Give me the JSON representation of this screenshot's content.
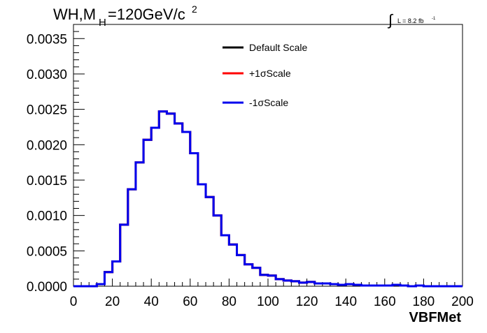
{
  "header": {
    "title_main": "WH,M",
    "title_sub": "H",
    "title_rest": "=120GeV/c",
    "title_sup": "2",
    "lumi_integral": "∫",
    "lumi_text": "L = 8.2 fb",
    "lumi_sup": "-1"
  },
  "chart_data": {
    "type": "line",
    "style": "step-histogram",
    "xlabel": "VBFMet",
    "ylabel": "",
    "xlim": [
      0,
      200
    ],
    "ylim": [
      0,
      0.0037
    ],
    "x_ticks": [
      0,
      20,
      40,
      60,
      80,
      100,
      120,
      140,
      160,
      180,
      200
    ],
    "x_tick_labels": [
      "0",
      "20",
      "40",
      "60",
      "80",
      "100",
      "120",
      "140",
      "160",
      "180",
      "200"
    ],
    "y_ticks": [
      0,
      0.0005,
      0.001,
      0.0015,
      0.002,
      0.0025,
      0.003,
      0.0035
    ],
    "y_tick_labels": [
      "0.0000",
      "0.0005",
      "0.0010",
      "0.0015",
      "0.0020",
      "0.0025",
      "0.0030",
      "0.0035"
    ],
    "grid": false,
    "legend_position": "top-center",
    "bin_edges": [
      0,
      4,
      8,
      12,
      16,
      20,
      24,
      28,
      32,
      36,
      40,
      44,
      48,
      52,
      56,
      60,
      64,
      68,
      72,
      76,
      80,
      84,
      88,
      92,
      96,
      100,
      104,
      108,
      112,
      116,
      120,
      124,
      128,
      132,
      136,
      140,
      144,
      148,
      152,
      156,
      160,
      164,
      168,
      172,
      176,
      180,
      184,
      188,
      192,
      196,
      200
    ],
    "series": [
      {
        "name": "Default Scale",
        "color": "#000000",
        "values": [
          0,
          0,
          0,
          3e-05,
          0.0002,
          0.00035,
          0.00087,
          0.00137,
          0.00175,
          0.00207,
          0.00224,
          0.00247,
          0.00244,
          0.0023,
          0.00218,
          0.00188,
          0.00144,
          0.00126,
          0.001,
          0.00072,
          0.00059,
          0.00044,
          0.00031,
          0.00026,
          0.00016,
          0.00015,
          0.0001,
          8e-05,
          7e-05,
          5e-05,
          6e-05,
          4e-05,
          4e-05,
          3e-05,
          2e-05,
          3e-05,
          2e-05,
          1e-05,
          1e-05,
          1e-05,
          1e-05,
          2e-05,
          1e-05,
          0,
          1e-05,
          0,
          0,
          0,
          0,
          0
        ]
      },
      {
        "name": "+1σScale",
        "color": "#ff0000",
        "values": [
          0,
          0,
          0,
          3e-05,
          0.0002,
          0.00035,
          0.00087,
          0.00137,
          0.00175,
          0.00207,
          0.00224,
          0.00247,
          0.00244,
          0.0023,
          0.00218,
          0.00188,
          0.00144,
          0.00126,
          0.001,
          0.00072,
          0.00059,
          0.00044,
          0.00031,
          0.00026,
          0.00016,
          0.00015,
          0.0001,
          8e-05,
          7e-05,
          5e-05,
          6e-05,
          4e-05,
          4e-05,
          3e-05,
          2e-05,
          3e-05,
          2e-05,
          1e-05,
          1e-05,
          1e-05,
          1e-05,
          2e-05,
          1e-05,
          0,
          1e-05,
          0,
          0,
          0,
          0,
          0
        ]
      },
      {
        "name": "-1σScale",
        "color": "#0000ee",
        "values": [
          0,
          0,
          0,
          3e-05,
          0.0002,
          0.00035,
          0.00087,
          0.00137,
          0.00175,
          0.00207,
          0.00224,
          0.00247,
          0.00244,
          0.0023,
          0.00218,
          0.00188,
          0.00144,
          0.00126,
          0.001,
          0.00072,
          0.00059,
          0.00044,
          0.00031,
          0.00026,
          0.00016,
          0.00015,
          0.0001,
          8e-05,
          7e-05,
          5e-05,
          6e-05,
          4e-05,
          4e-05,
          3e-05,
          2e-05,
          3e-05,
          2e-05,
          1e-05,
          1e-05,
          1e-05,
          1e-05,
          2e-05,
          1e-05,
          0,
          1e-05,
          0,
          0,
          0,
          0,
          0
        ]
      }
    ]
  }
}
